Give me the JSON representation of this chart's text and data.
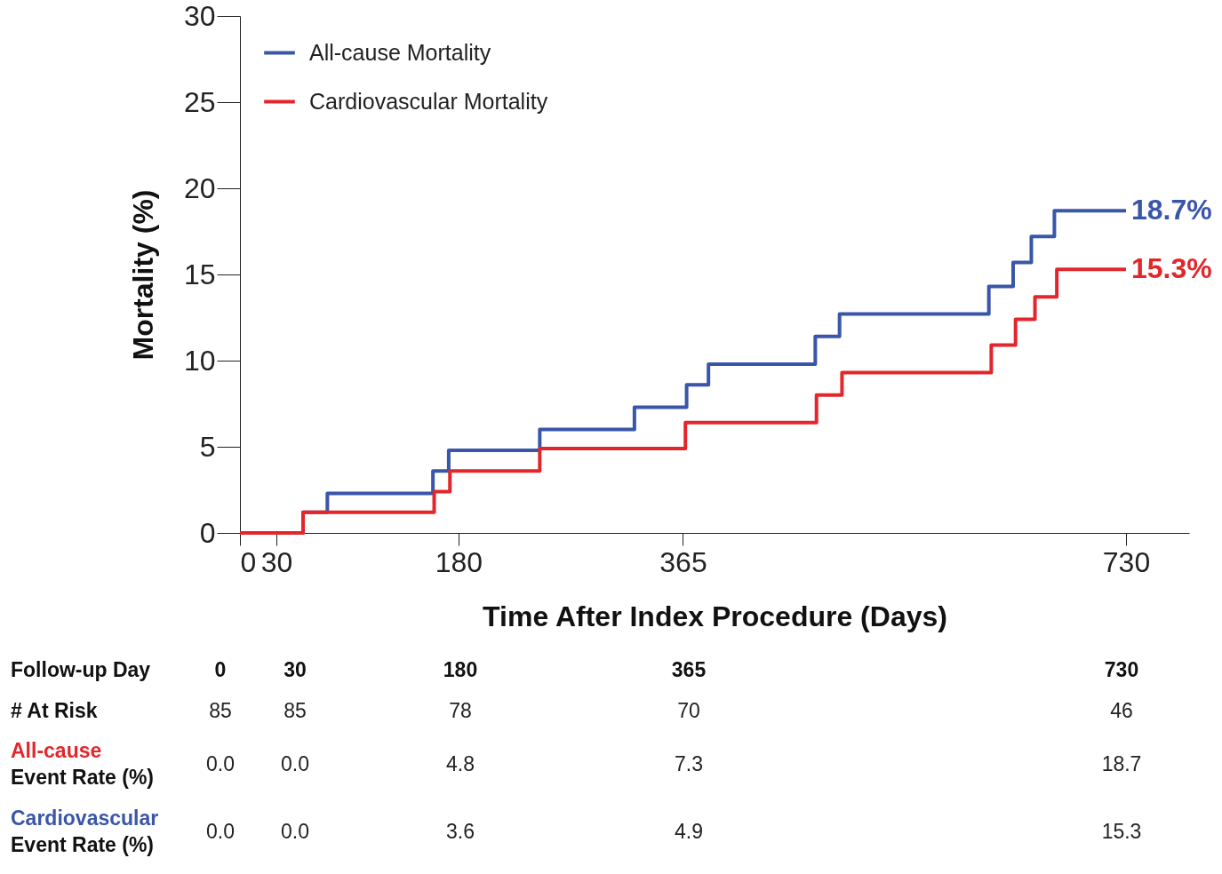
{
  "chart_data": [
    {
      "type": "step",
      "xlabel": "Time After Index Procedure (Days)",
      "ylabel": "Mortality (%)",
      "xlim": [
        0,
        782
      ],
      "ylim": [
        0,
        30
      ],
      "xticks": [
        0,
        30,
        180,
        365,
        730
      ],
      "yticks": [
        0,
        5,
        10,
        15,
        20,
        25,
        30
      ],
      "grid": false,
      "legend": "top left",
      "line_style": "solid",
      "marker": "none",
      "series": [
        {
          "name": "All-cause Mortality",
          "color": "#3a56a8",
          "x": [
            0,
            52,
            72,
            159,
            172,
            247,
            325,
            368,
            386,
            474,
            494,
            617,
            637,
            652,
            671,
            730
          ],
          "values": [
            0,
            1.2,
            2.3,
            3.6,
            4.8,
            6.0,
            7.3,
            8.6,
            9.8,
            11.4,
            12.7,
            14.3,
            15.7,
            17.2,
            18.7,
            18.7
          ],
          "value_labels": [
            null,
            null,
            null,
            null,
            null,
            null,
            null,
            null,
            null,
            null,
            null,
            null,
            null,
            null,
            null,
            "18.7%"
          ]
        },
        {
          "name": "Cardiovascular Mortality",
          "color": "#e3262b",
          "x": [
            0,
            52,
            160,
            173,
            247,
            367,
            475,
            496,
            619,
            639,
            655,
            673,
            730
          ],
          "values": [
            0,
            1.2,
            2.4,
            3.6,
            4.9,
            6.4,
            8.0,
            9.3,
            10.9,
            12.4,
            13.7,
            15.3,
            15.3
          ],
          "value_labels": [
            null,
            null,
            null,
            null,
            null,
            null,
            null,
            null,
            null,
            null,
            null,
            null,
            "15.3%"
          ]
        }
      ]
    },
    {
      "type": "other",
      "xlabel": "Follow-up Day",
      "categories": [
        "0",
        "30",
        "180",
        "365",
        "730"
      ],
      "series": [
        {
          "name": "# At Risk",
          "values": [
            85,
            85,
            78,
            70,
            46
          ],
          "value_labels": [
            "85",
            "85",
            "78",
            "70",
            "46"
          ]
        },
        {
          "name": "All-cause\nEvent Rate (%)",
          "color": "#e3262b",
          "values": [
            0.0,
            0.0,
            4.8,
            7.3,
            18.7
          ],
          "value_labels": [
            "0.0",
            "0.0",
            "4.8",
            "7.3",
            "18.7"
          ]
        },
        {
          "name": "Cardiovascular\nEvent Rate (%)",
          "color": "#3a56a8",
          "values": [
            0.0,
            0.0,
            3.6,
            4.9,
            15.3
          ],
          "value_labels": [
            "0.0",
            "0.0",
            "3.6",
            "4.9",
            "15.3"
          ]
        }
      ]
    }
  ]
}
